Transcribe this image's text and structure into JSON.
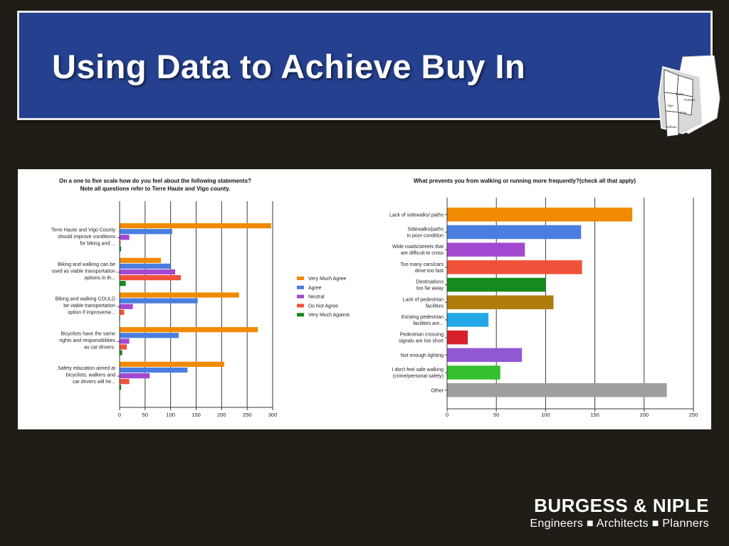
{
  "slide": {
    "title": "Using Data to Achieve Buy In"
  },
  "map": {
    "labels": [
      "Parke",
      "Putnam",
      "Vigo",
      "Clay",
      "Sullivan"
    ]
  },
  "brand": {
    "name": "BURGESS & NIPLE",
    "tagline_words": [
      "Engineers",
      "Architects",
      "Planners"
    ],
    "tagline": "Engineers ■ Architects ■ Planners"
  },
  "chart_data": [
    {
      "type": "bar",
      "orientation": "horizontal",
      "title": "On a one to five scale  how do you feel about the following statements?",
      "subtitle": "Note all questions refer to Terre Haute and Vigo county.",
      "categories": [
        [
          "Terre Haute and Vigo County",
          "should improve conditions",
          "for biking and ..."
        ],
        [
          "Biking and walking can be",
          "used as viable transportation",
          "options in th..."
        ],
        [
          "Biking and walking COULD",
          "be viable transportation",
          "option if improveme..."
        ],
        [
          "Bicyclists have the same",
          "rights and responsibilities",
          "as car drivers."
        ],
        [
          "Safety education aimed at",
          "bicyclists, walkers and",
          "car drivers will he..."
        ]
      ],
      "series": [
        {
          "name": "Very Much Agree",
          "color": "#f08a00",
          "values": [
            297,
            81,
            234,
            271,
            205
          ]
        },
        {
          "name": "Agree",
          "color": "#4a7de0",
          "values": [
            103,
            100,
            153,
            116,
            133
          ]
        },
        {
          "name": "Neutral",
          "color": "#a349d0",
          "values": [
            19,
            109,
            26,
            19,
            59
          ]
        },
        {
          "name": "Do Not Agree",
          "color": "#ef5239",
          "values": [
            2,
            120,
            9,
            14,
            19
          ]
        },
        {
          "name": "Very Much Against",
          "color": "#168a1e",
          "values": [
            3,
            12,
            1,
            5,
            3
          ]
        }
      ],
      "xlim": [
        0,
        300
      ],
      "xticks": [
        0,
        50,
        100,
        150,
        200,
        250,
        300
      ],
      "grid": "vertical",
      "legend": "right"
    },
    {
      "type": "bar",
      "orientation": "horizontal",
      "title": "What prevents you from walking or running more frequently?(check all that apply)",
      "categories": [
        [
          "Lack of sidewalks/ paths"
        ],
        [
          "Sidewalks/paths",
          "in poor condition"
        ],
        [
          "Wide roads/streets that",
          "are difficult to cross"
        ],
        [
          "Too many cars/cars",
          "drive too fast"
        ],
        [
          "Destinations",
          "too far away"
        ],
        [
          "Lack of pedestrian",
          "facilities"
        ],
        [
          "Existing pedestrian",
          "facilities are..."
        ],
        [
          "Pedestrian crossing",
          "signals are too short"
        ],
        [
          "Not enough lighting"
        ],
        [
          "I don't feel safe walking",
          "(crime/personal safety)"
        ],
        [
          "Other"
        ]
      ],
      "values": [
        188,
        136,
        79,
        137,
        100,
        108,
        42,
        21,
        76,
        54,
        223
      ],
      "colors": [
        "#f08a00",
        "#4a7de0",
        "#a349d0",
        "#ef5239",
        "#168a1e",
        "#b07d0c",
        "#24a8e8",
        "#d81f2c",
        "#9258d4",
        "#35c02f",
        "#9e9e9e"
      ],
      "xlim": [
        0,
        250
      ],
      "xticks": [
        0,
        50,
        100,
        150,
        200,
        250
      ],
      "grid": "vertical",
      "legend": "none"
    }
  ]
}
